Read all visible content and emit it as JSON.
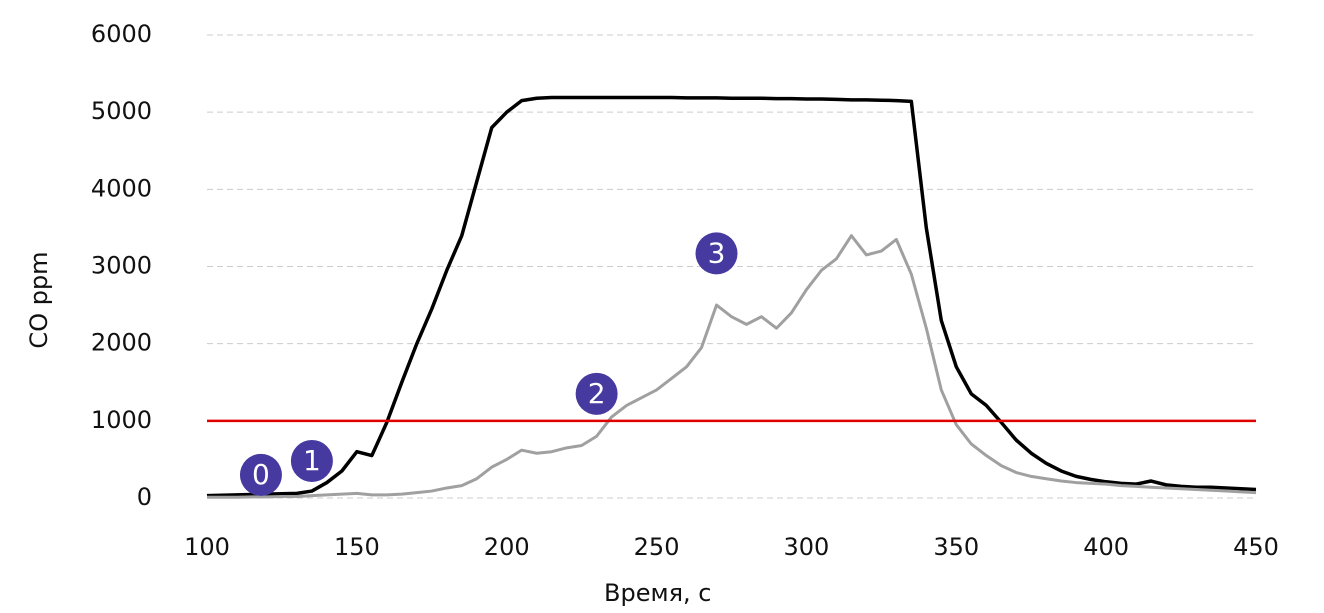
{
  "chart_data": {
    "type": "line",
    "xlabel": "Время, с",
    "ylabel": "CO ppm",
    "x": [
      100,
      105,
      110,
      115,
      120,
      125,
      130,
      135,
      140,
      145,
      150,
      155,
      160,
      165,
      170,
      175,
      180,
      185,
      190,
      195,
      200,
      205,
      210,
      215,
      220,
      225,
      230,
      235,
      240,
      245,
      250,
      255,
      260,
      265,
      270,
      275,
      280,
      285,
      290,
      295,
      300,
      305,
      310,
      315,
      320,
      325,
      330,
      335,
      340,
      345,
      350,
      355,
      360,
      365,
      370,
      375,
      380,
      385,
      390,
      395,
      400,
      405,
      410,
      415,
      420,
      425,
      430,
      435,
      440,
      445,
      450
    ],
    "series": [
      {
        "color": "#000000",
        "values": [
          30,
          35,
          40,
          45,
          50,
          55,
          60,
          90,
          200,
          350,
          600,
          550,
          980,
          1500,
          2000,
          2450,
          2950,
          3400,
          4100,
          4800,
          5000,
          5150,
          5180,
          5190,
          5190,
          5190,
          5190,
          5190,
          5190,
          5190,
          5190,
          5190,
          5185,
          5185,
          5185,
          5180,
          5180,
          5180,
          5175,
          5175,
          5170,
          5170,
          5165,
          5160,
          5160,
          5155,
          5150,
          5140,
          3500,
          2300,
          1700,
          1350,
          1200,
          980,
          750,
          580,
          450,
          350,
          280,
          240,
          210,
          190,
          180,
          220,
          170,
          150,
          140,
          140,
          130,
          120,
          110
        ]
      },
      {
        "color": "#a0a0a0",
        "values": [
          10,
          10,
          10,
          15,
          15,
          20,
          20,
          30,
          40,
          50,
          60,
          40,
          40,
          50,
          70,
          90,
          130,
          160,
          250,
          400,
          500,
          620,
          580,
          600,
          650,
          680,
          800,
          1050,
          1200,
          1300,
          1400,
          1550,
          1700,
          1950,
          2500,
          2350,
          2250,
          2350,
          2200,
          2400,
          2700,
          2950,
          3100,
          3400,
          3150,
          3200,
          3350,
          2900,
          2200,
          1400,
          950,
          700,
          550,
          420,
          330,
          280,
          250,
          220,
          200,
          190,
          180,
          160,
          150,
          140,
          130,
          120,
          110,
          100,
          90,
          80,
          70
        ]
      }
    ],
    "reference_line": {
      "value": 1000,
      "color": "#e00000"
    },
    "annotations": [
      {
        "label": "0",
        "x": 118,
        "y": 300
      },
      {
        "label": "1",
        "x": 135,
        "y": 480
      },
      {
        "label": "2",
        "x": 230,
        "y": 1350
      },
      {
        "label": "3",
        "x": 270,
        "y": 3170
      }
    ],
    "annotation_color": "#46399f",
    "xlim": [
      100,
      450
    ],
    "xticks": [
      100,
      150,
      200,
      250,
      300,
      350,
      400,
      450
    ],
    "ylim": [
      0,
      6000
    ],
    "yticks": [
      0,
      1000,
      2000,
      3000,
      4000,
      5000,
      6000
    ],
    "grid": true
  }
}
